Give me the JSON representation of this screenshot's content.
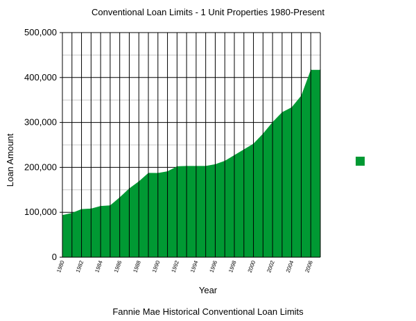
{
  "chart_data": {
    "type": "area",
    "title": "Conventional Loan Limits - 1 Unit Properties 1980-Present",
    "caption": "Fannie Mae Historical Conventional Loan Limits",
    "xlabel": "Year",
    "ylabel": "Loan Amount",
    "x_tick_labels": [
      "1980",
      "1982",
      "1984",
      "1986",
      "1988",
      "1990",
      "1992",
      "1994",
      "1996",
      "1998",
      "2000",
      "2002",
      "2004",
      "2006"
    ],
    "y_tick_labels": [
      "0",
      "100,000",
      "200,000",
      "300,000",
      "400,000",
      "500,000"
    ],
    "ylim": [
      0,
      500000
    ],
    "xlim": [
      1980,
      2007
    ],
    "grid": true,
    "legend_placement": "right",
    "series": [
      {
        "color": "#009933",
        "x": [
          1980,
          1981,
          1982,
          1983,
          1984,
          1985,
          1986,
          1987,
          1988,
          1989,
          1990,
          1991,
          1992,
          1993,
          1994,
          1995,
          1996,
          1997,
          1998,
          1999,
          2000,
          2001,
          2002,
          2003,
          2004,
          2005,
          2006,
          2007
        ],
        "values": [
          93750,
          98500,
          107000,
          108300,
          114000,
          115300,
          133250,
          153100,
          168700,
          187600,
          187450,
          191250,
          202300,
          203150,
          203150,
          203150,
          207000,
          214600,
          227150,
          240000,
          252700,
          275000,
          300700,
          322700,
          333700,
          359650,
          417000,
          417000
        ]
      }
    ]
  }
}
